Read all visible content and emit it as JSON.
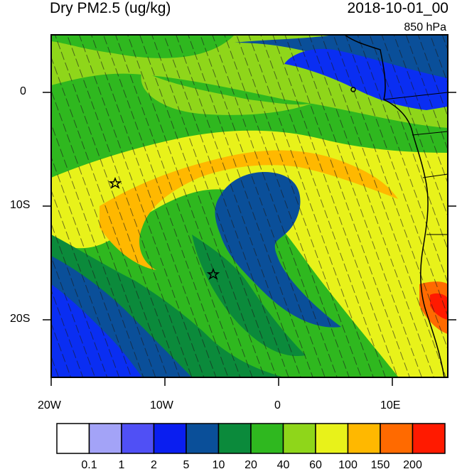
{
  "title": "Dry PM2.5 (ug/kg)",
  "datetime": "2018-10-01_00",
  "level": "850 hPa",
  "colors": {
    "water_low": "#0a4f99",
    "blue": "#0a2ef2",
    "dark_green": "#0b8a3b",
    "green": "#2fb81f",
    "light_green": "#8fd61a",
    "yellow": "#e8f21a",
    "orange": "#ffb800",
    "dark_orange": "#ff6a00",
    "red": "#ff1a00",
    "coast": "#000000"
  },
  "axes": {
    "lat_ticks": [
      "0",
      "10S",
      "20S"
    ],
    "lon_ticks": [
      "20W",
      "10W",
      "0",
      "10E"
    ]
  },
  "colorbar": {
    "colors": [
      "#ffffff",
      "#a3a3f7",
      "#5050f5",
      "#0a1ef0",
      "#0a4f99",
      "#0b8a3b",
      "#2fb81f",
      "#8fd61a",
      "#e8f21a",
      "#ffb800",
      "#ff6a00",
      "#ff1a00"
    ],
    "labels": [
      "0.1",
      "1",
      "2",
      "5",
      "10",
      "20",
      "40",
      "60",
      "100",
      "150",
      "200"
    ]
  },
  "markers": [
    {
      "name": "star-1"
    },
    {
      "name": "star-2"
    }
  ]
}
